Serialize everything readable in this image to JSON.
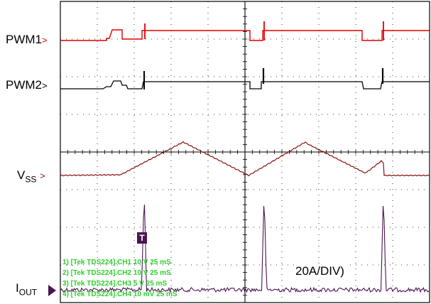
{
  "chart_data": {
    "type": "line",
    "title": "",
    "xlabel": "",
    "ylabel": "",
    "grid": true,
    "divisions": {
      "x": 10,
      "y": 8
    },
    "channels": [
      {
        "label": "PWM1",
        "color": "#e00000",
        "id": "ch1"
      },
      {
        "label": "PWM2",
        "color": "#000000",
        "id": "ch2"
      },
      {
        "label_main": "V",
        "label_sub": "SS",
        "color": "#8a1010",
        "id": "ch3"
      },
      {
        "label_main": "I",
        "label_sub": "OUT",
        "color": "#4a1550",
        "id": "ch4"
      }
    ],
    "annotations": {
      "scale_note": "20A/DIV)",
      "trigger_marker": "T",
      "arrow_glyph": ">"
    },
    "info_lines": [
      "1) [Tek TDS224].CH1  10  V   25 mS",
      "2) [Tek TDS224].CH2  10  V   25 mS",
      "3) [Tek TDS224].CH3  5  V   25 mS",
      "4) [Tek TDS224].CH4  10 mV  25 mS"
    ]
  }
}
